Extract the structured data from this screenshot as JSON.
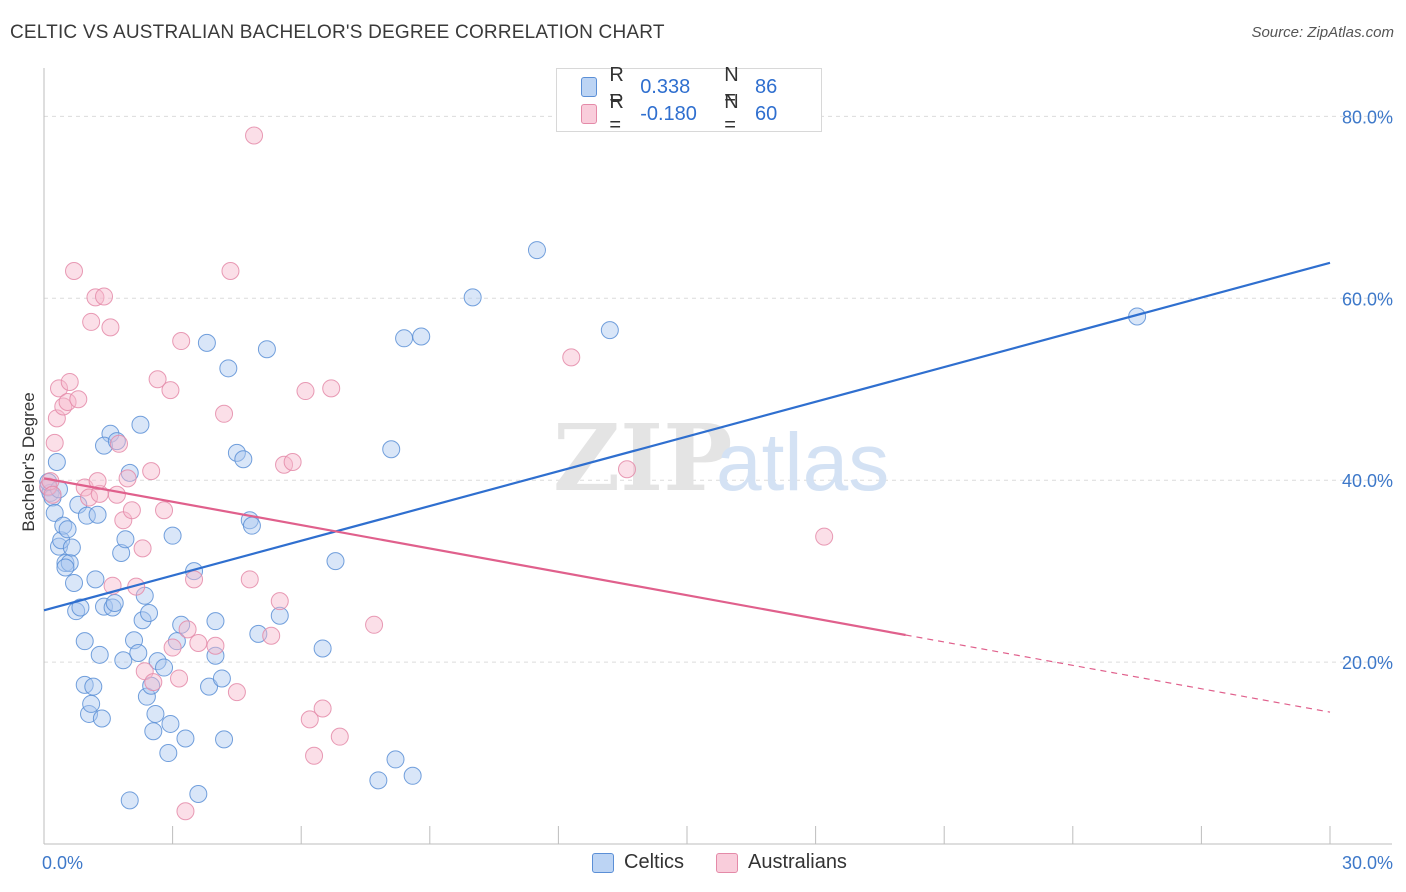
{
  "header": {
    "title": "CELTIC VS AUSTRALIAN BACHELOR'S DEGREE CORRELATION CHART",
    "source": "Source: ZipAtlas.com"
  },
  "watermark": {
    "zip": "ZIP",
    "atlas": "atlas"
  },
  "legend": {
    "rows": [
      {
        "r_label": "R =",
        "r_value": "0.338",
        "n_label": "N =",
        "n_value": "86"
      },
      {
        "r_label": "R =",
        "r_value": "-0.180",
        "n_label": "N =",
        "n_value": "60"
      }
    ]
  },
  "colors": {
    "celtics_fill": "#aac8f0",
    "celtics_stroke": "#5b8fd6",
    "celtics_line": "#2f6fcf",
    "australians_fill": "#f6b9cc",
    "australians_stroke": "#e48aa8",
    "australians_line": "#e0608c",
    "axis_label": "#3d78c9",
    "grid": "#dcdcdc"
  },
  "chart_data": {
    "type": "scatter",
    "title": "CELTIC VS AUSTRALIAN BACHELOR'S DEGREE CORRELATION CHART",
    "xlabel": "",
    "ylabel": "Bachelor's Degree",
    "xlim": [
      0,
      30
    ],
    "ylim": [
      0,
      84
    ],
    "x_tick_labels": [
      {
        "value": 0,
        "label": "0.0%"
      },
      {
        "value": 30,
        "label": "30.0%"
      }
    ],
    "y_tick_labels": [
      {
        "value": 20,
        "label": "20.0%"
      },
      {
        "value": 40,
        "label": "40.0%"
      },
      {
        "value": 60,
        "label": "60.0%"
      },
      {
        "value": 80,
        "label": "80.0%"
      }
    ],
    "legend_position": "top-center",
    "series": [
      {
        "name": "Celtics",
        "R": 0.338,
        "N": 86,
        "trend": {
          "x0": 0,
          "y0": 25.7,
          "x1": 30,
          "y1": 63.9,
          "dashed_from": null
        },
        "points": [
          [
            0.1,
            39.2
          ],
          [
            0.15,
            38.6
          ],
          [
            0.2,
            38.1
          ],
          [
            0.25,
            36.4
          ],
          [
            0.3,
            42.0
          ],
          [
            0.35,
            32.7
          ],
          [
            0.4,
            33.4
          ],
          [
            0.45,
            35.0
          ],
          [
            0.5,
            30.9
          ],
          [
            0.55,
            34.6
          ],
          [
            0.6,
            30.9
          ],
          [
            0.65,
            32.6
          ],
          [
            0.7,
            28.7
          ],
          [
            0.75,
            25.6
          ],
          [
            0.8,
            37.3
          ],
          [
            0.85,
            26.0
          ],
          [
            0.95,
            22.3
          ],
          [
            0.95,
            17.5
          ],
          [
            1.0,
            36.1
          ],
          [
            1.05,
            14.3
          ],
          [
            1.1,
            15.4
          ],
          [
            1.15,
            17.3
          ],
          [
            1.2,
            29.1
          ],
          [
            1.25,
            36.2
          ],
          [
            1.3,
            20.8
          ],
          [
            1.35,
            13.8
          ],
          [
            1.4,
            26.1
          ],
          [
            1.6,
            26.0
          ],
          [
            1.65,
            26.5
          ],
          [
            1.8,
            32.0
          ],
          [
            1.85,
            20.2
          ],
          [
            1.9,
            33.5
          ],
          [
            2.0,
            40.8
          ],
          [
            2.1,
            22.4
          ],
          [
            2.2,
            21.0
          ],
          [
            2.3,
            24.6
          ],
          [
            2.35,
            27.3
          ],
          [
            2.4,
            16.2
          ],
          [
            2.45,
            25.4
          ],
          [
            2.5,
            17.4
          ],
          [
            2.55,
            12.4
          ],
          [
            2.6,
            14.3
          ],
          [
            2.65,
            20.1
          ],
          [
            2.8,
            19.4
          ],
          [
            2.9,
            10.0
          ],
          [
            2.95,
            13.2
          ],
          [
            3.0,
            33.9
          ],
          [
            3.1,
            22.3
          ],
          [
            3.2,
            24.1
          ],
          [
            3.3,
            11.6
          ],
          [
            3.5,
            30.0
          ],
          [
            3.8,
            55.1
          ],
          [
            3.85,
            17.3
          ],
          [
            4.0,
            24.5
          ],
          [
            4.0,
            20.7
          ],
          [
            4.15,
            18.2
          ],
          [
            4.2,
            11.5
          ],
          [
            4.3,
            52.3
          ],
          [
            4.5,
            43.0
          ],
          [
            4.65,
            42.3
          ],
          [
            4.8,
            35.6
          ],
          [
            4.85,
            35.0
          ],
          [
            5.0,
            23.1
          ],
          [
            5.2,
            54.4
          ],
          [
            5.5,
            25.1
          ],
          [
            6.5,
            21.5
          ],
          [
            6.8,
            31.1
          ],
          [
            7.8,
            7.0
          ],
          [
            8.1,
            43.4
          ],
          [
            8.2,
            9.3
          ],
          [
            8.4,
            55.6
          ],
          [
            8.6,
            7.5
          ],
          [
            8.8,
            55.8
          ],
          [
            10.0,
            60.1
          ],
          [
            11.5,
            65.3
          ],
          [
            13.2,
            56.5
          ],
          [
            25.5,
            58.0
          ],
          [
            0.1,
            39.8
          ],
          [
            0.5,
            30.4
          ],
          [
            1.55,
            45.1
          ],
          [
            2.25,
            46.1
          ],
          [
            2.0,
            4.8
          ],
          [
            0.35,
            39.0
          ],
          [
            1.4,
            43.8
          ],
          [
            1.7,
            44.3
          ],
          [
            3.6,
            5.5
          ]
        ]
      },
      {
        "name": "Australians",
        "R": -0.18,
        "N": 60,
        "trend": {
          "x0": 0,
          "y0": 40.2,
          "x1": 30,
          "y1": 14.5,
          "dashed_from": 20.1
        },
        "points": [
          [
            0.1,
            39.3
          ],
          [
            0.15,
            39.9
          ],
          [
            0.2,
            38.4
          ],
          [
            0.25,
            44.1
          ],
          [
            0.3,
            46.8
          ],
          [
            0.35,
            50.1
          ],
          [
            0.45,
            48.1
          ],
          [
            0.55,
            48.6
          ],
          [
            0.6,
            50.8
          ],
          [
            0.7,
            63.0
          ],
          [
            0.8,
            48.9
          ],
          [
            0.95,
            39.2
          ],
          [
            1.05,
            38.1
          ],
          [
            1.1,
            57.4
          ],
          [
            1.2,
            60.1
          ],
          [
            1.3,
            38.5
          ],
          [
            1.4,
            60.2
          ],
          [
            1.55,
            56.8
          ],
          [
            1.7,
            38.4
          ],
          [
            1.75,
            44.0
          ],
          [
            1.85,
            35.6
          ],
          [
            1.95,
            40.2
          ],
          [
            2.05,
            36.7
          ],
          [
            2.15,
            28.3
          ],
          [
            2.3,
            32.5
          ],
          [
            2.35,
            19.0
          ],
          [
            2.5,
            41.0
          ],
          [
            2.65,
            51.1
          ],
          [
            2.8,
            36.7
          ],
          [
            2.95,
            49.9
          ],
          [
            3.0,
            21.6
          ],
          [
            3.15,
            18.2
          ],
          [
            3.2,
            55.3
          ],
          [
            3.35,
            23.6
          ],
          [
            3.5,
            29.1
          ],
          [
            3.6,
            22.1
          ],
          [
            4.0,
            21.8
          ],
          [
            4.2,
            47.3
          ],
          [
            4.35,
            63.0
          ],
          [
            4.5,
            16.7
          ],
          [
            4.8,
            29.1
          ],
          [
            4.9,
            77.9
          ],
          [
            5.3,
            22.9
          ],
          [
            5.5,
            26.7
          ],
          [
            5.6,
            41.7
          ],
          [
            5.8,
            42.0
          ],
          [
            6.1,
            49.8
          ],
          [
            6.2,
            13.7
          ],
          [
            6.3,
            9.7
          ],
          [
            6.5,
            14.9
          ],
          [
            6.7,
            50.1
          ],
          [
            6.9,
            11.8
          ],
          [
            7.7,
            24.1
          ],
          [
            12.3,
            53.5
          ],
          [
            13.6,
            41.2
          ],
          [
            18.2,
            33.8
          ],
          [
            3.3,
            3.6
          ],
          [
            1.6,
            28.4
          ],
          [
            2.55,
            17.8
          ],
          [
            1.25,
            39.9
          ]
        ]
      }
    ]
  },
  "bottom_legend": {
    "celtics": "Celtics",
    "australians": "Australians"
  }
}
